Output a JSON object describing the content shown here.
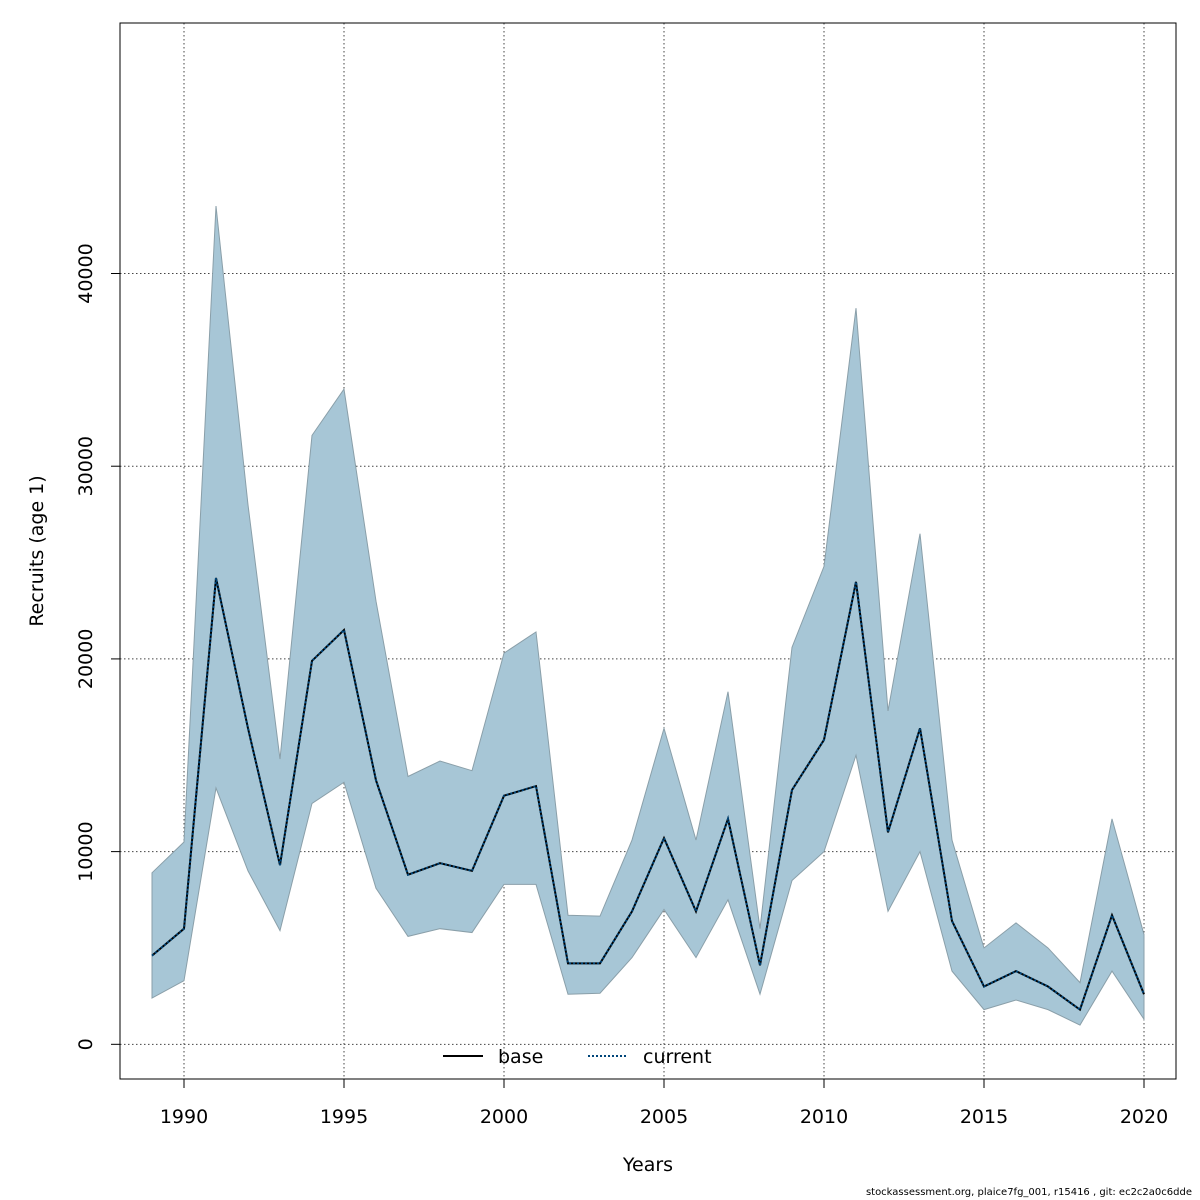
{
  "chart_data": {
    "type": "line",
    "title": "",
    "xlabel": "Years",
    "ylabel": "Recruits (age 1)",
    "xlim": [
      1988,
      2021
    ],
    "ylim": [
      -1800,
      53000
    ],
    "x_ticks": [
      1990,
      1995,
      2000,
      2005,
      2010,
      2015,
      2020
    ],
    "y_ticks": [
      0,
      10000,
      20000,
      30000,
      40000
    ],
    "grid": true,
    "legend_position": "bottom",
    "x": [
      1989,
      1990,
      1991,
      1992,
      1993,
      1994,
      1995,
      1996,
      1997,
      1998,
      1999,
      2000,
      2001,
      2002,
      2003,
      2004,
      2005,
      2006,
      2007,
      2008,
      2009,
      2010,
      2011,
      2012,
      2013,
      2014,
      2015,
      2016,
      2017,
      2018,
      2019,
      2020
    ],
    "band": {
      "lower": [
        2400,
        3300,
        13300,
        9000,
        5900,
        12500,
        13600,
        8100,
        5600,
        6000,
        5800,
        8300,
        8300,
        2600,
        2650,
        4500,
        7000,
        4500,
        7500,
        2600,
        8500,
        10000,
        15000,
        6900,
        10000,
        3800,
        1800,
        2300,
        1800,
        1000,
        3800,
        1300
      ],
      "upper": [
        8900,
        10500,
        43500,
        28000,
        14800,
        31600,
        34000,
        23000,
        13900,
        14700,
        14200,
        20300,
        21400,
        6700,
        6650,
        10600,
        16400,
        10600,
        18300,
        6000,
        20600,
        24800,
        38200,
        17300,
        26500,
        10600,
        5000,
        6300,
        5000,
        3200,
        11700,
        5700
      ],
      "fill_color": "#a7c6d6",
      "edge_color": "#8a9fa9"
    },
    "series": [
      {
        "name": "base",
        "style": "solid",
        "color": "#000000",
        "values": [
          4600,
          6000,
          24200,
          16400,
          9300,
          19900,
          21500,
          13700,
          8800,
          9400,
          9000,
          12900,
          13400,
          4200,
          4200,
          6900,
          10700,
          6900,
          11700,
          4100,
          13200,
          15800,
          24000,
          11000,
          16400,
          6400,
          3000,
          3800,
          3000,
          1800,
          6700,
          2600
        ]
      },
      {
        "name": "current",
        "style": "dotted",
        "color": "#00467a",
        "values": [
          4600,
          6000,
          24200,
          16400,
          9300,
          19900,
          21500,
          13700,
          8800,
          9400,
          9000,
          12900,
          13400,
          4200,
          4200,
          6900,
          10700,
          6900,
          11700,
          4100,
          13200,
          15800,
          24000,
          11000,
          16400,
          6400,
          3000,
          3800,
          3000,
          1800,
          6700,
          2600
        ]
      }
    ]
  },
  "footer": {
    "note": "stockassessment.org, plaice7fg_001, r15416 , git: ec2c2a0c6dde"
  }
}
